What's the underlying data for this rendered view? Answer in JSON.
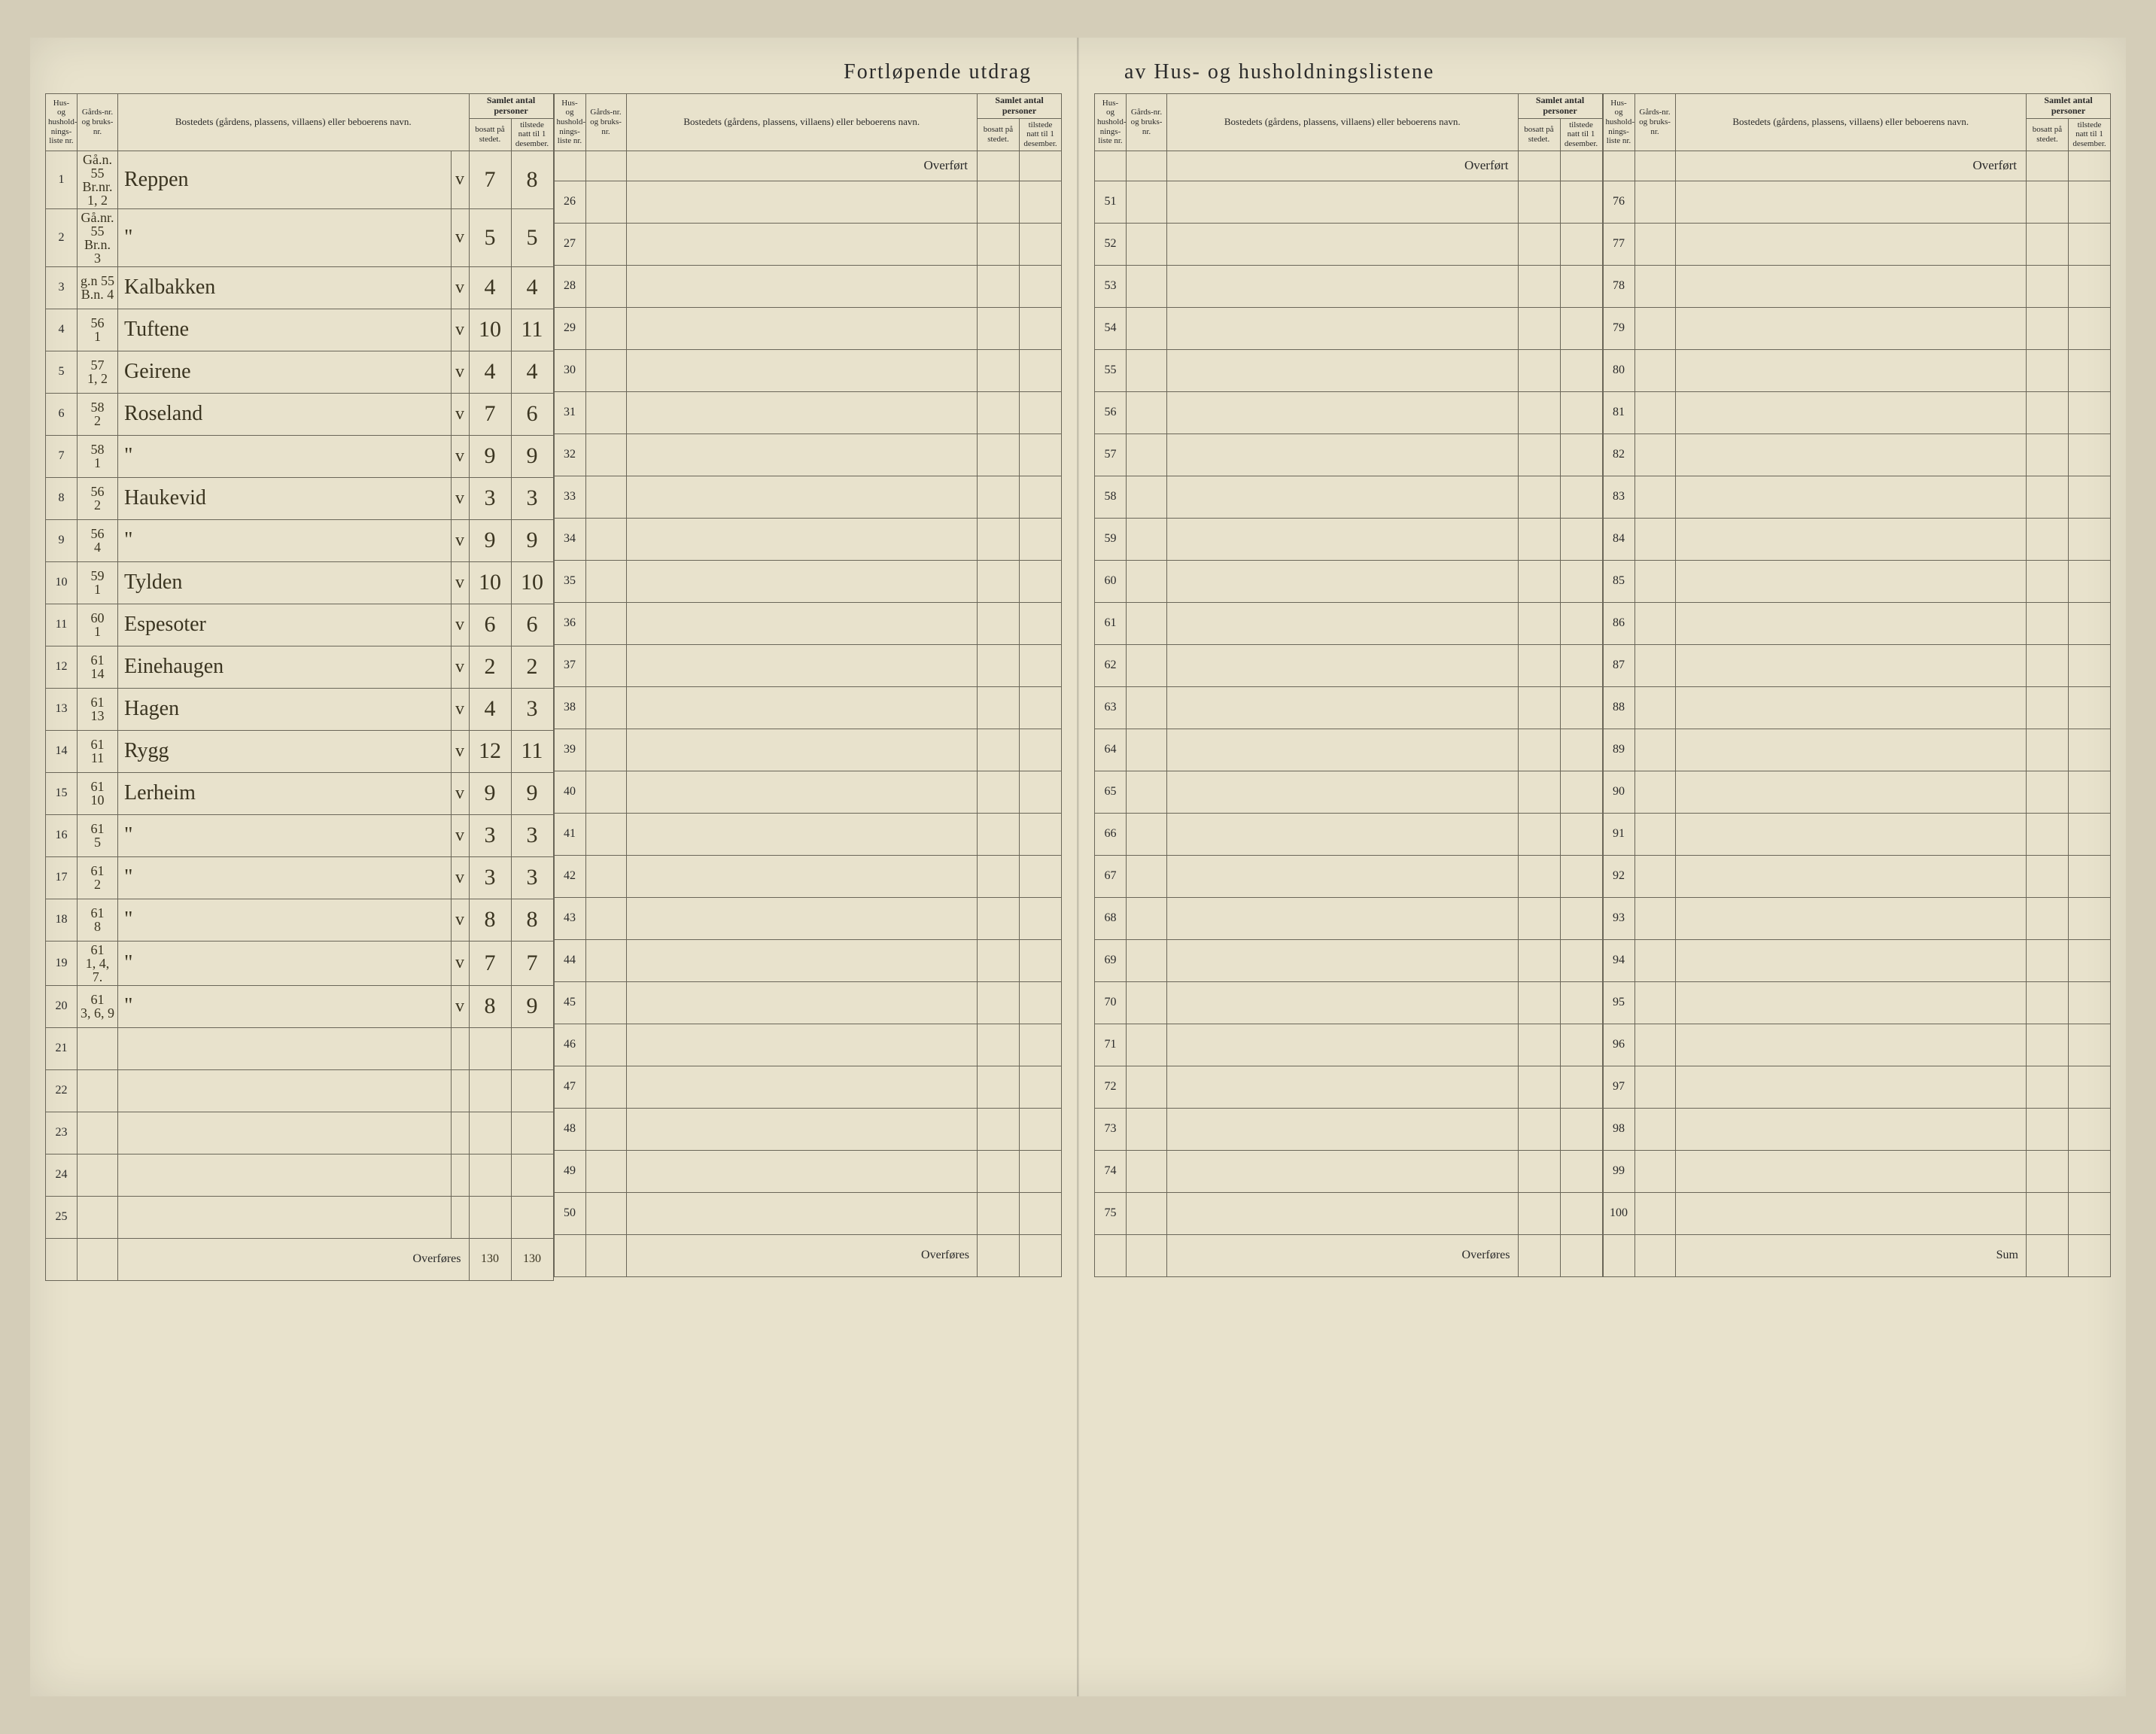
{
  "title_left": "Fortløpende utdrag",
  "title_right": "av Hus- og husholdningslistene",
  "headers": {
    "liste": "Hus- og hushold-nings-liste nr.",
    "gard": "Gårds-nr. og bruks-nr.",
    "name": "Bostedets (gårdens, plassens, villaens) eller beboerens navn.",
    "samlet": "Samlet antal personer",
    "bosatt": "bosatt på stedet.",
    "tilstede": "tilstede natt til 1 desember."
  },
  "overfort": "Overført",
  "overfores": "Overføres",
  "sum": "Sum",
  "footer_bosatt": "130",
  "footer_tilstede": "130",
  "rows_a": [
    {
      "n": "1",
      "g1": "Gå.n. 55",
      "g2": "Br.nr. 1, 2",
      "name": "Reppen",
      "t": "v",
      "b": "7",
      "s": "8"
    },
    {
      "n": "2",
      "g1": "Gå.nr. 55",
      "g2": "Br.n. 3",
      "name": "\"",
      "t": "v",
      "b": "5",
      "s": "5"
    },
    {
      "n": "3",
      "g1": "g.n 55",
      "g2": "B.n. 4",
      "name": "Kalbakken",
      "t": "v",
      "b": "4",
      "s": "4"
    },
    {
      "n": "4",
      "g1": "56",
      "g2": "1",
      "name": "Tuftene",
      "t": "v",
      "b": "10",
      "s": "11"
    },
    {
      "n": "5",
      "g1": "57",
      "g2": "1, 2",
      "name": "Geirene",
      "t": "v",
      "b": "4",
      "s": "4"
    },
    {
      "n": "6",
      "g1": "58",
      "g2": "2",
      "name": "Roseland",
      "t": "v",
      "b": "7",
      "s": "6"
    },
    {
      "n": "7",
      "g1": "58",
      "g2": "1",
      "name": "\"",
      "t": "v",
      "b": "9",
      "s": "9"
    },
    {
      "n": "8",
      "g1": "56",
      "g2": "2",
      "name": "Haukevid",
      "t": "v",
      "b": "3",
      "s": "3"
    },
    {
      "n": "9",
      "g1": "56",
      "g2": "4",
      "name": "\"",
      "t": "v",
      "b": "9",
      "s": "9"
    },
    {
      "n": "10",
      "g1": "59",
      "g2": "1",
      "name": "Tylden",
      "t": "v",
      "b": "10",
      "s": "10"
    },
    {
      "n": "11",
      "g1": "60",
      "g2": "1",
      "name": "Espesoter",
      "t": "v",
      "b": "6",
      "s": "6"
    },
    {
      "n": "12",
      "g1": "61",
      "g2": "14",
      "name": "Einehaugen",
      "t": "v",
      "b": "2",
      "s": "2"
    },
    {
      "n": "13",
      "g1": "61",
      "g2": "13",
      "name": "Hagen",
      "t": "v",
      "b": "4",
      "s": "3"
    },
    {
      "n": "14",
      "g1": "61",
      "g2": "11",
      "name": "Rygg",
      "t": "v",
      "b": "12",
      "s": "11"
    },
    {
      "n": "15",
      "g1": "61",
      "g2": "10",
      "name": "Lerheim",
      "t": "v",
      "b": "9",
      "s": "9"
    },
    {
      "n": "16",
      "g1": "61",
      "g2": "5",
      "name": "\"",
      "t": "v",
      "b": "3",
      "s": "3"
    },
    {
      "n": "17",
      "g1": "61",
      "g2": "2",
      "name": "\"",
      "t": "v",
      "b": "3",
      "s": "3"
    },
    {
      "n": "18",
      "g1": "61",
      "g2": "8",
      "name": "\"",
      "t": "v",
      "b": "8",
      "s": "8"
    },
    {
      "n": "19",
      "g1": "61",
      "g2": "1, 4, 7.",
      "name": "\"",
      "t": "v",
      "b": "7",
      "s": "7"
    },
    {
      "n": "20",
      "g1": "61",
      "g2": "3, 6, 9",
      "name": "\"",
      "t": "v",
      "b": "8",
      "s": "9"
    },
    {
      "n": "21",
      "g1": "",
      "g2": "",
      "name": "",
      "t": "",
      "b": "",
      "s": ""
    },
    {
      "n": "22",
      "g1": "",
      "g2": "",
      "name": "",
      "t": "",
      "b": "",
      "s": ""
    },
    {
      "n": "23",
      "g1": "",
      "g2": "",
      "name": "",
      "t": "",
      "b": "",
      "s": ""
    },
    {
      "n": "24",
      "g1": "",
      "g2": "",
      "name": "",
      "t": "",
      "b": "",
      "s": ""
    },
    {
      "n": "25",
      "g1": "",
      "g2": "",
      "name": "",
      "t": "",
      "b": "",
      "s": ""
    }
  ],
  "rows_b_start": 26,
  "rows_c_start": 51,
  "rows_d_start": 76,
  "colors": {
    "paper": "#e8e2cc",
    "ink": "#2a2a2a",
    "hand_ink": "#3a3420",
    "rule": "#6a6658"
  }
}
